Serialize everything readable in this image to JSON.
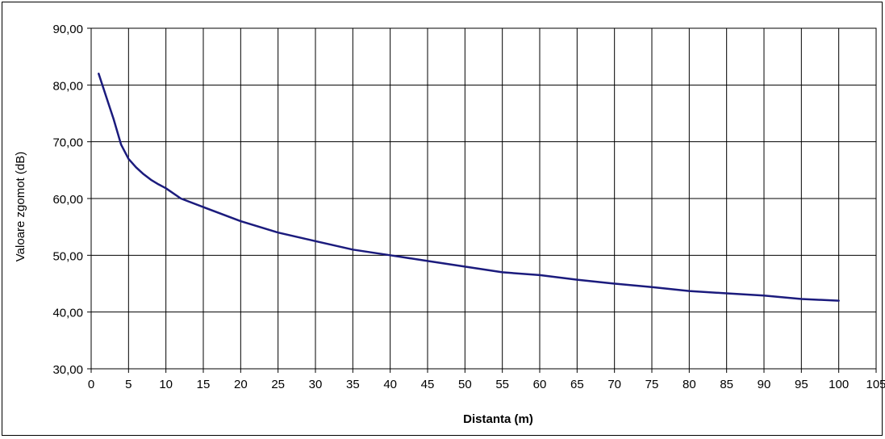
{
  "chart_data": {
    "type": "line",
    "xlabel": "Distanta (m)",
    "ylabel": "Valoare zgomot (dB)",
    "xlim": [
      0,
      105
    ],
    "ylim": [
      30,
      90
    ],
    "x_ticks": [
      "0",
      "5",
      "10",
      "15",
      "20",
      "25",
      "30",
      "35",
      "40",
      "45",
      "50",
      "55",
      "60",
      "65",
      "70",
      "75",
      "80",
      "85",
      "90",
      "95",
      "100",
      "105"
    ],
    "y_ticks": [
      "30,00",
      "40,00",
      "50,00",
      "60,00",
      "70,00",
      "80,00",
      "90,00"
    ],
    "grid": true,
    "legend": "none",
    "colors": {
      "line": "#1b1b7d",
      "grid": "#000000"
    },
    "series": [
      {
        "x": [
          1,
          2,
          3,
          4,
          5,
          6,
          7,
          8,
          9,
          10,
          12,
          15,
          20,
          25,
          30,
          35,
          40,
          45,
          50,
          55,
          60,
          65,
          70,
          75,
          80,
          85,
          90,
          95,
          100
        ],
        "values": [
          82,
          78,
          74,
          69.5,
          67,
          65.5,
          64.3,
          63.3,
          62.5,
          61.8,
          60,
          58.5,
          56,
          54,
          52.5,
          51,
          50,
          49,
          48,
          47,
          46.5,
          45.7,
          45,
          44.4,
          43.7,
          43.3,
          42.9,
          42.3,
          42
        ]
      }
    ]
  }
}
